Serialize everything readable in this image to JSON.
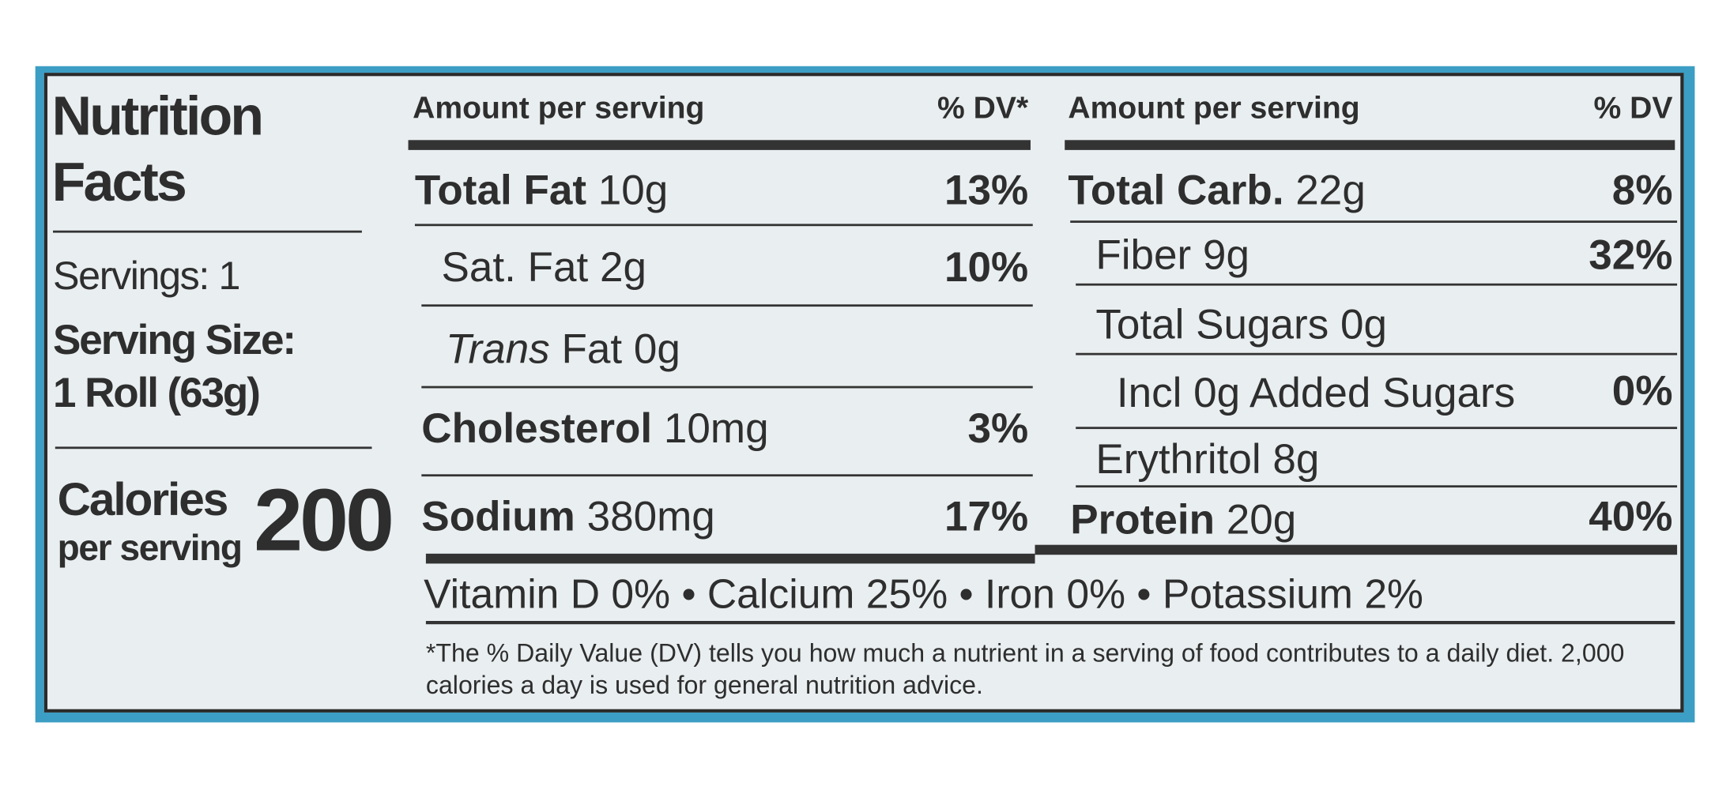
{
  "header": {
    "title_line1": "Nutrition",
    "title_line2": "Facts"
  },
  "servings": "Servings: 1",
  "serving_size": {
    "label": "Serving Size:",
    "value": "1 Roll (63g)"
  },
  "calories": {
    "label": "Calories",
    "sublabel": "per serving",
    "value": "200"
  },
  "left_table": {
    "header": {
      "amount": "Amount per serving",
      "dv": "% DV*"
    },
    "rows": [
      {
        "bold": "Total Fat",
        "text": "10g",
        "dv": "13%"
      },
      {
        "text": "Sat. Fat 2g",
        "dv": "10%"
      },
      {
        "italic": "Trans",
        "text": "Fat 0g"
      },
      {
        "bold": "Cholesterol",
        "text": "10mg",
        "dv": "3%"
      },
      {
        "bold": "Sodium",
        "text": "380mg",
        "dv": "17%"
      }
    ]
  },
  "right_table": {
    "header": {
      "amount": "Amount per serving",
      "dv": "% DV"
    },
    "rows": [
      {
        "bold": "Total Carb.",
        "text": "22g",
        "dv": "8%"
      },
      {
        "text": "Fiber 9g",
        "dv": "32%"
      },
      {
        "text": "Total Sugars 0g"
      },
      {
        "text": "Incl 0g Added Sugars",
        "dv": "0%"
      },
      {
        "text": "Erythritol 8g"
      },
      {
        "bold": "Protein",
        "text": "20g",
        "dv": "40%"
      }
    ]
  },
  "vitamins": [
    "Vitamin D 0%",
    "Calcium 25%",
    "Iron 0%",
    "Potassium 2%"
  ],
  "footnote": "*The % Daily Value (DV) tells you how much a nutrient in a serving of food contributes to a daily diet. 2,000 calories a day is used for general nutrition advice."
}
